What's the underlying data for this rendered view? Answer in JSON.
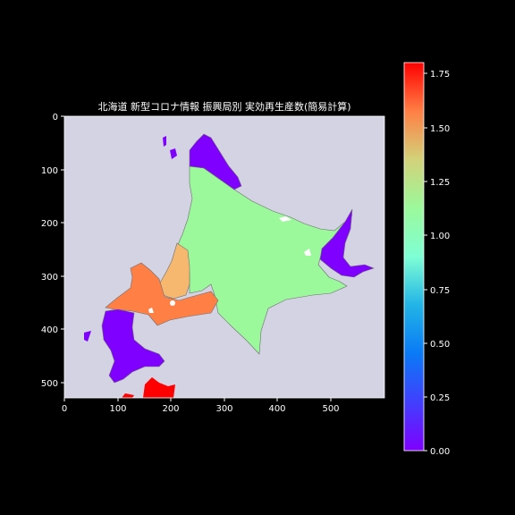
{
  "title": "北海道 新型コロナ情報 振興局別 実効再生産数(簡易計算)",
  "map": {
    "background_color": "#d3d3e3",
    "border_color": "#6e6e6e",
    "x_ticks": [
      "0",
      "100",
      "200",
      "300",
      "400",
      "500"
    ],
    "y_ticks": [
      "0",
      "100",
      "200",
      "300",
      "400",
      "500"
    ],
    "regions": [
      {
        "name": "north-east",
        "value": 0.0,
        "color": "#7f00ff"
      },
      {
        "name": "nemuro",
        "value": 0.0,
        "color": "#7f00ff"
      },
      {
        "name": "oshima-hiyama",
        "value": 0.0,
        "color": "#7f00ff"
      },
      {
        "name": "rishiri",
        "value": 0.0,
        "color": "#7f00ff"
      },
      {
        "name": "okushiri",
        "value": 0.0,
        "color": "#7f00ff"
      },
      {
        "name": "interior",
        "value": 0.95,
        "color": "#9bf99b"
      },
      {
        "name": "central",
        "value": 1.3,
        "color": "#f5b86e"
      },
      {
        "name": "south-west",
        "value": 1.55,
        "color": "#ff7f45"
      },
      {
        "name": "aomori-edge",
        "value": 1.8,
        "color": "#ff0000"
      }
    ]
  },
  "colorbar": {
    "ticks": [
      "0.00",
      "0.25",
      "0.50",
      "0.75",
      "1.00",
      "1.25",
      "1.50",
      "1.75"
    ],
    "min": 0.0,
    "max": 1.8,
    "colormap": "rainbow"
  }
}
